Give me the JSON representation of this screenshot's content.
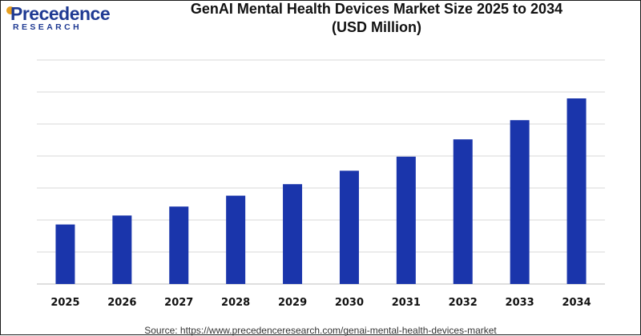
{
  "logo": {
    "name": "Precedence",
    "tagline": "RESEARCH"
  },
  "chart_data": {
    "type": "bar",
    "title": "GenAI Mental Health Devices Market Size 2025 to 2034",
    "title_line2": "(USD Million)",
    "categories": [
      "2025",
      "2026",
      "2027",
      "2028",
      "2029",
      "2030",
      "2031",
      "2032",
      "2033",
      "2034"
    ],
    "values": [
      93,
      107,
      121,
      138,
      156,
      177,
      199,
      226,
      256,
      290
    ],
    "xlabel": "",
    "ylabel": "",
    "ylim": [
      0,
      350
    ],
    "grid": true,
    "bar_color": "#1a35ab",
    "grid_color": "#d9d9d9"
  },
  "source": "Source: https://www.precedenceresearch.com/genai-mental-health-devices-market"
}
